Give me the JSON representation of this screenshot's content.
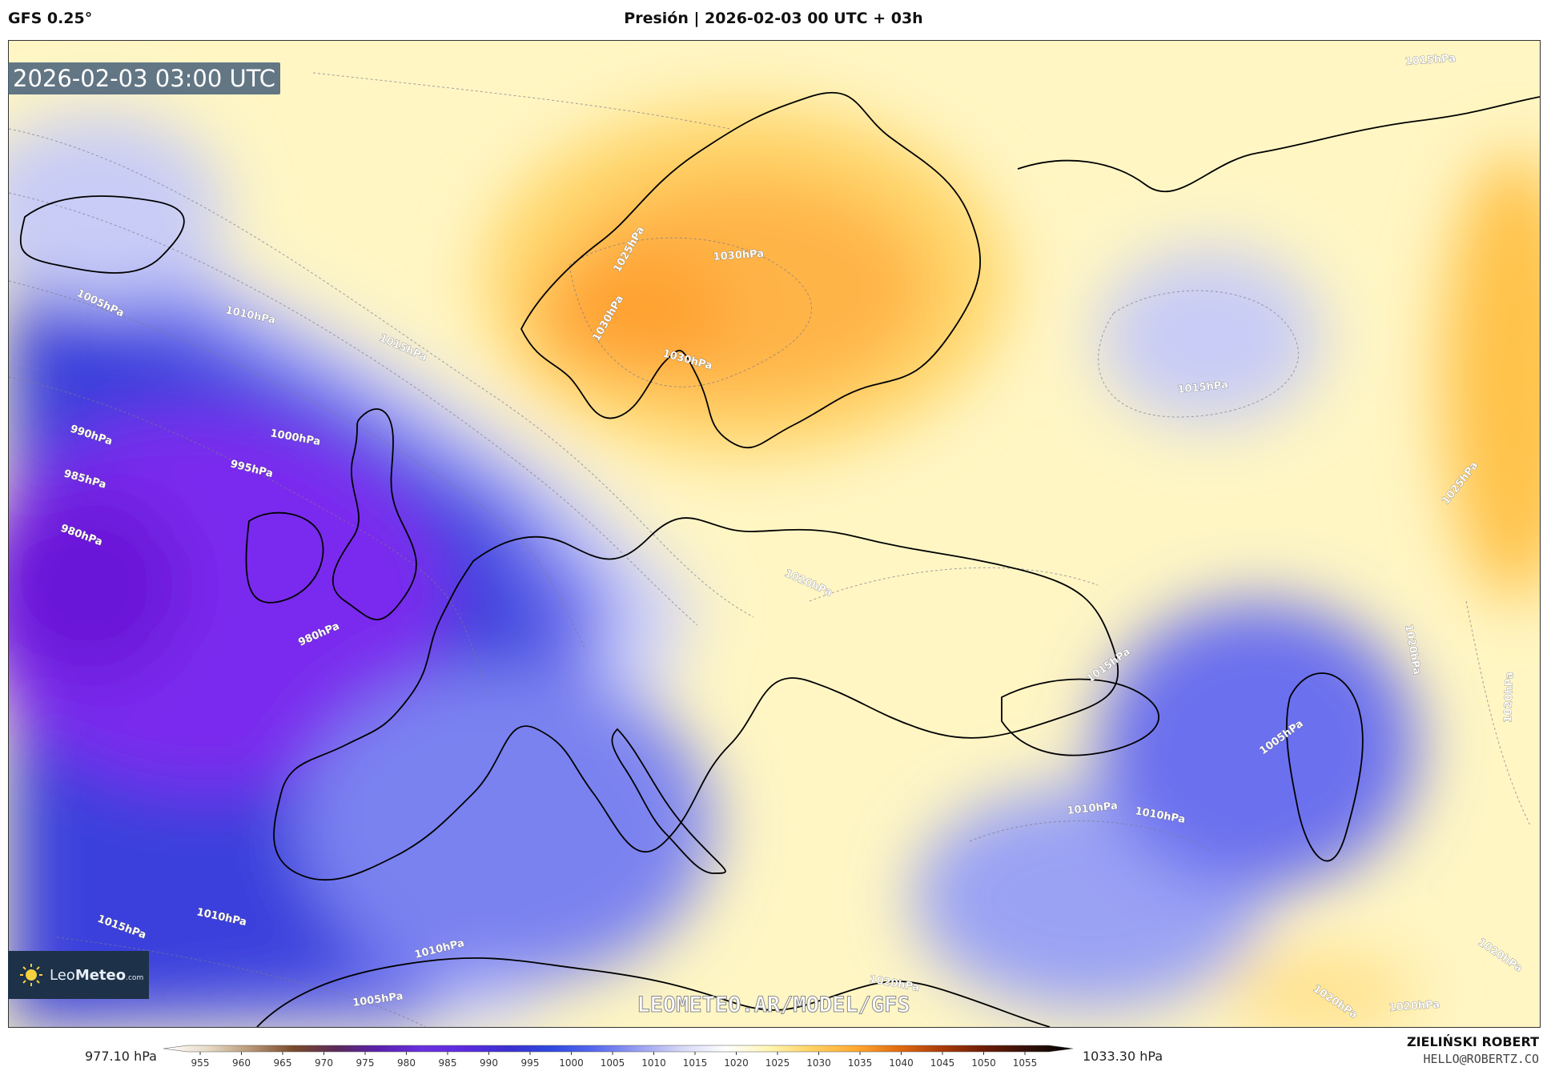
{
  "header": {
    "model": "GFS 0.25°",
    "title": "Presión | 2026-02-03 00 UTC + 03h"
  },
  "map": {
    "valid_time": "2026-02-03 03:00 UTC",
    "region": "Europe",
    "variable": "Presión",
    "contour_labels": [
      {
        "text": "1005hPa"
      },
      {
        "text": "1010hPa"
      },
      {
        "text": "1015hPa"
      },
      {
        "text": "990hPa"
      },
      {
        "text": "985hPa"
      },
      {
        "text": "980hPa"
      },
      {
        "text": "995hPa"
      },
      {
        "text": "1000hPa"
      },
      {
        "text": "980hPa"
      },
      {
        "text": "1025hPa"
      },
      {
        "text": "1030hPa"
      },
      {
        "text": "1030hPa"
      },
      {
        "text": "1030hPa"
      },
      {
        "text": "1015hPa"
      },
      {
        "text": "1015hPa"
      },
      {
        "text": "1025hPa"
      },
      {
        "text": "1020hPa"
      },
      {
        "text": "1020hPa"
      },
      {
        "text": "1020hPa"
      },
      {
        "text": "1015hPa"
      },
      {
        "text": "1010hPa"
      },
      {
        "text": "1010hPa"
      },
      {
        "text": "1005hPa"
      },
      {
        "text": "1010hPa"
      },
      {
        "text": "1010hPa"
      },
      {
        "text": "1015hPa"
      },
      {
        "text": "1005hPa"
      },
      {
        "text": "1020hPa"
      },
      {
        "text": "1020hPa"
      },
      {
        "text": "1020hPa"
      },
      {
        "text": "1020hPa"
      }
    ]
  },
  "logo": {
    "brand_light": "Leo",
    "brand_bold": "Meteo",
    "suffix": ".com"
  },
  "watermark": "LEOMETEO.AR/MODEL/GFS",
  "colorbar": {
    "min_label": "977.10 hPa",
    "max_label": "1033.30 hPa",
    "ticks": [
      "955",
      "960",
      "965",
      "970",
      "975",
      "980",
      "985",
      "990",
      "995",
      "1000",
      "1005",
      "1010",
      "1015",
      "1020",
      "1025",
      "1030",
      "1035",
      "1040",
      "1045",
      "1050",
      "1055"
    ],
    "colors": [
      "#ffffff",
      "#e8dcc8",
      "#b89878",
      "#7a4a2a",
      "#5a2a5a",
      "#5a20b0",
      "#6a30e0",
      "#5a2ae0",
      "#3a30d0",
      "#2f4ae0",
      "#5a6aef",
      "#9aa0f2",
      "#d8daf6",
      "#ffffff",
      "#fff5b0",
      "#ffd060",
      "#ffa830",
      "#e06a10",
      "#a83a08",
      "#6a1a05",
      "#301008",
      "#000000"
    ]
  },
  "credits": {
    "author": "ZIELIŃSKI ROBERT",
    "email": "HELLO@ROBERTZ.CO"
  }
}
